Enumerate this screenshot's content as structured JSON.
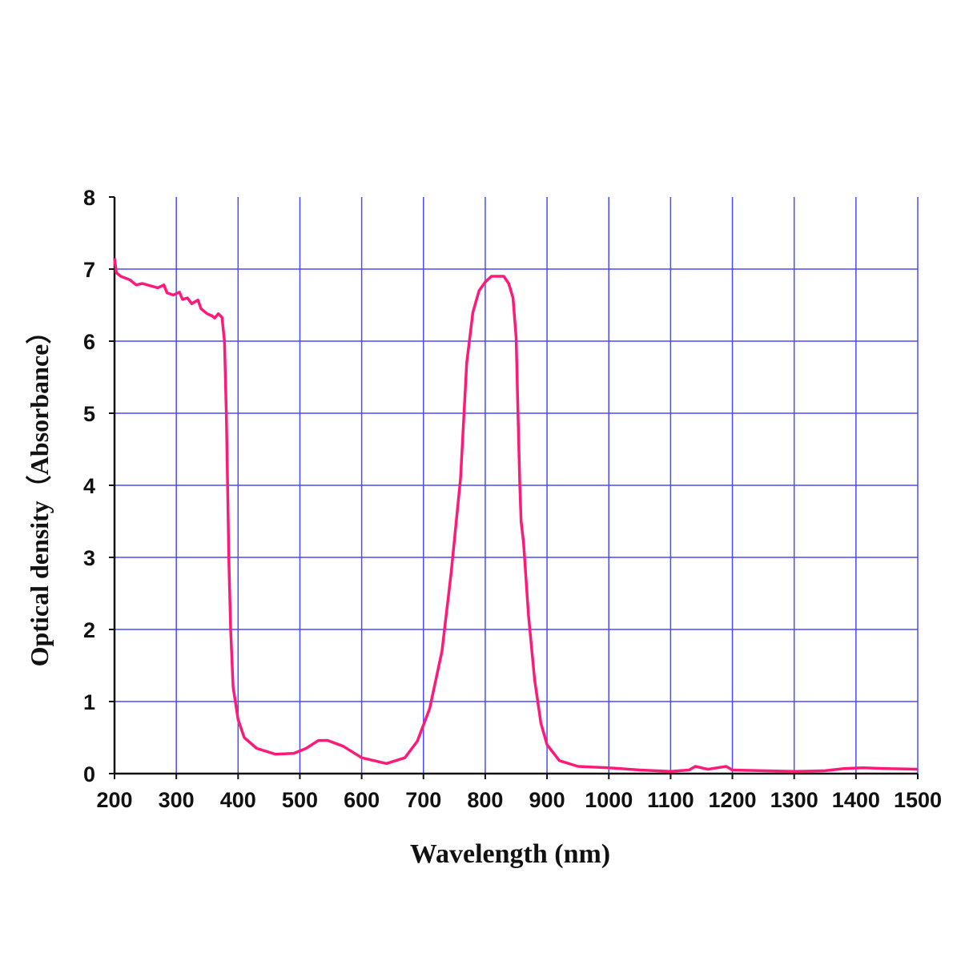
{
  "chart_data": {
    "type": "line",
    "title": "",
    "xlabel": "Wavelength (nm)",
    "ylabel": "Optical density（Absorbance）",
    "xlim": [
      200,
      1500
    ],
    "ylim": [
      0,
      8
    ],
    "xticks": [
      200,
      300,
      400,
      500,
      600,
      700,
      800,
      900,
      1000,
      1100,
      1200,
      1300,
      1400,
      1500
    ],
    "yticks": [
      0,
      1,
      2,
      3,
      4,
      5,
      6,
      7,
      8
    ],
    "grid": true,
    "colors": {
      "line": "#ff1a7a",
      "grid": "#4a4aff",
      "axis": "#111111"
    },
    "series": [
      {
        "name": "Optical density",
        "x": [
          200,
          203,
          210,
          225,
          235,
          245,
          270,
          280,
          285,
          295,
          305,
          310,
          318,
          325,
          335,
          340,
          350,
          358,
          362,
          368,
          374,
          378,
          381,
          383,
          385,
          388,
          392,
          400,
          410,
          430,
          460,
          490,
          510,
          530,
          545,
          570,
          600,
          640,
          670,
          690,
          710,
          730,
          745,
          760,
          770,
          780,
          790,
          800,
          810,
          830,
          838,
          845,
          850,
          853,
          856,
          858,
          862,
          870,
          880,
          890,
          900,
          920,
          950,
          1000,
          1050,
          1100,
          1130,
          1140,
          1160,
          1190,
          1200,
          1250,
          1300,
          1350,
          1380,
          1410,
          1450,
          1500
        ],
        "y": [
          7.15,
          6.95,
          6.9,
          6.85,
          6.78,
          6.8,
          6.74,
          6.78,
          6.67,
          6.64,
          6.68,
          6.58,
          6.6,
          6.52,
          6.57,
          6.45,
          6.38,
          6.35,
          6.32,
          6.38,
          6.33,
          6.0,
          5.0,
          4.0,
          3.0,
          2.0,
          1.2,
          0.75,
          0.5,
          0.35,
          0.27,
          0.28,
          0.35,
          0.46,
          0.46,
          0.38,
          0.22,
          0.14,
          0.22,
          0.45,
          0.9,
          1.7,
          2.8,
          4.1,
          5.7,
          6.4,
          6.7,
          6.82,
          6.9,
          6.9,
          6.8,
          6.6,
          6.05,
          5.0,
          4.0,
          3.5,
          3.2,
          2.2,
          1.3,
          0.7,
          0.4,
          0.18,
          0.1,
          0.08,
          0.05,
          0.03,
          0.05,
          0.1,
          0.06,
          0.1,
          0.05,
          0.04,
          0.03,
          0.04,
          0.07,
          0.08,
          0.07,
          0.06
        ]
      }
    ]
  }
}
